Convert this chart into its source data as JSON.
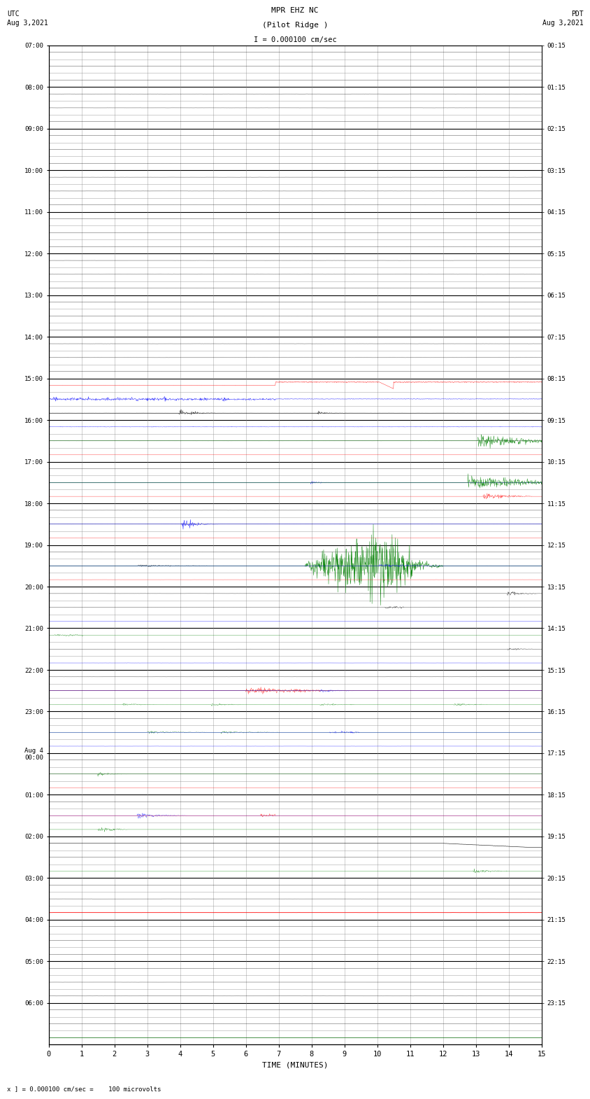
{
  "title_line1": "MPR EHZ NC",
  "title_line2": "(Pilot Ridge )",
  "scale_label": "I = 0.000100 cm/sec",
  "left_header": "UTC\nAug 3,2021",
  "right_header": "PDT\nAug 3,2021",
  "bottom_note": "x ] = 0.000100 cm/sec =    100 microvolts",
  "xlabel": "TIME (MINUTES)",
  "left_labels": [
    "07:00",
    "08:00",
    "09:00",
    "10:00",
    "11:00",
    "12:00",
    "13:00",
    "14:00",
    "15:00",
    "16:00",
    "17:00",
    "18:00",
    "19:00",
    "20:00",
    "21:00",
    "22:00",
    "23:00",
    "Aug 4\n00:00",
    "01:00",
    "02:00",
    "03:00",
    "04:00",
    "05:00",
    "06:00"
  ],
  "right_labels": [
    "00:15",
    "01:15",
    "02:15",
    "03:15",
    "04:15",
    "05:15",
    "06:15",
    "07:15",
    "08:15",
    "09:15",
    "10:15",
    "11:15",
    "12:15",
    "13:15",
    "14:15",
    "15:15",
    "16:15",
    "17:15",
    "18:15",
    "19:15",
    "20:15",
    "21:15",
    "22:15",
    "23:15"
  ],
  "bg_color": "#ffffff",
  "grid_color": "#888888",
  "num_rows": 24,
  "num_subrows": 3,
  "fig_width": 8.5,
  "fig_height": 16.13
}
